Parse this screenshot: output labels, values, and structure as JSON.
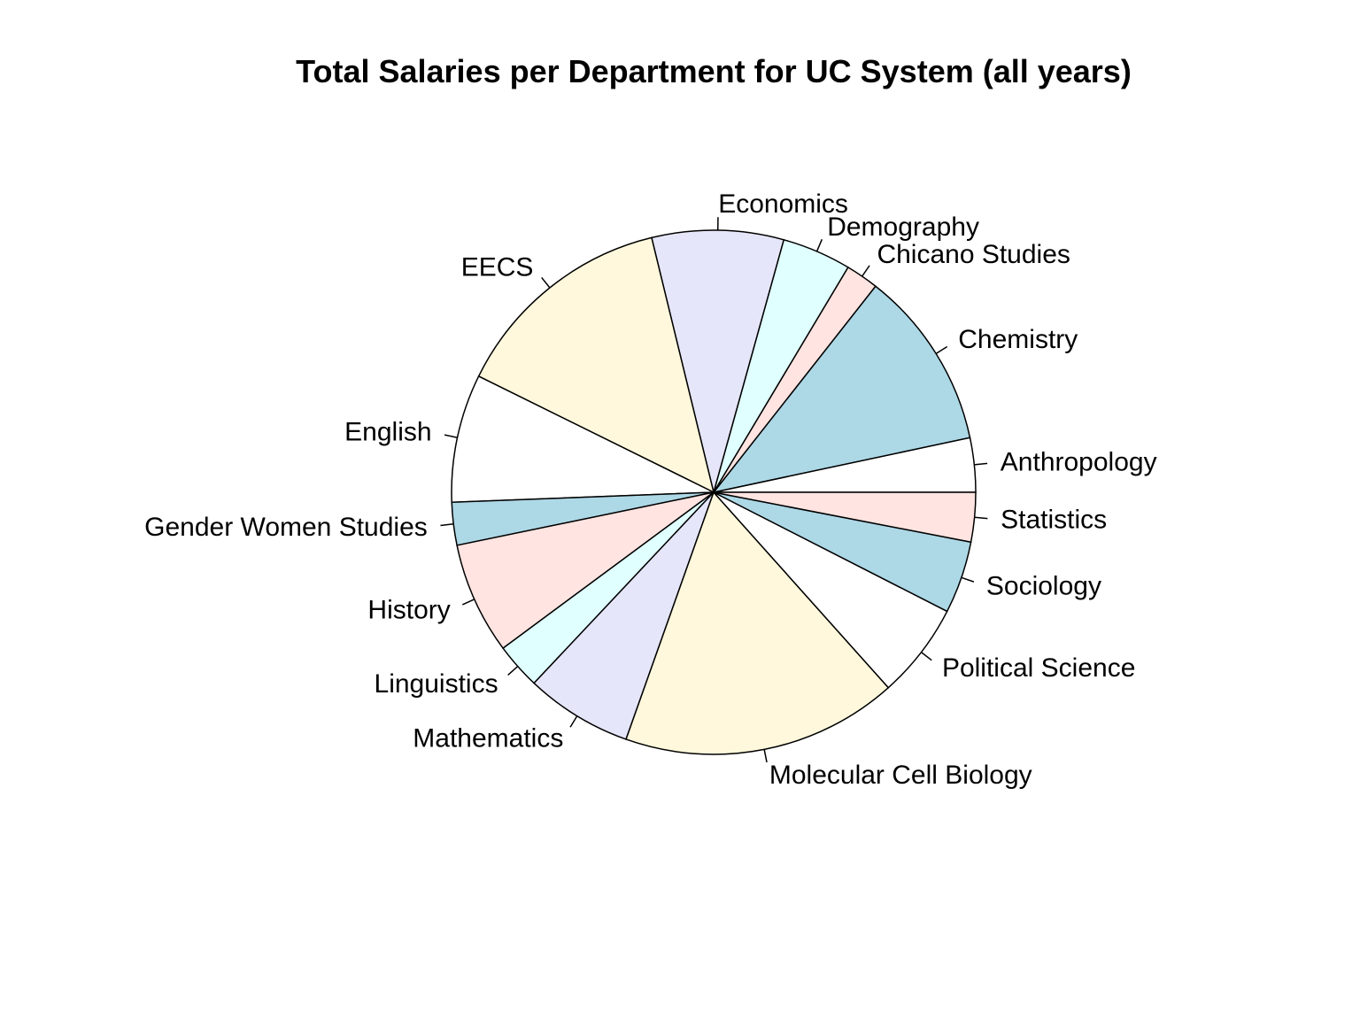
{
  "chart_data": {
    "type": "pie",
    "title": "Total Salaries per Department for UC System (all years)",
    "slices": [
      {
        "label": "Anthropology",
        "value": 3.3,
        "color": "#ffffff"
      },
      {
        "label": "Chemistry",
        "value": 10.9,
        "color": "#add8e6"
      },
      {
        "label": "Chicano Studies",
        "value": 2.0,
        "color": "#ffe4e1"
      },
      {
        "label": "Demography",
        "value": 4.2,
        "color": "#e0ffff"
      },
      {
        "label": "Economics",
        "value": 8.0,
        "color": "#e6e6fa"
      },
      {
        "label": "EECS",
        "value": 13.7,
        "color": "#fff8dc"
      },
      {
        "label": "English",
        "value": 7.8,
        "color": "#ffffff"
      },
      {
        "label": "Gender Women Studies",
        "value": 2.6,
        "color": "#add8e6"
      },
      {
        "label": "History",
        "value": 6.8,
        "color": "#ffe4e1"
      },
      {
        "label": "Linguistics",
        "value": 2.8,
        "color": "#e0ffff"
      },
      {
        "label": "Mathematics",
        "value": 6.5,
        "color": "#e6e6fa"
      },
      {
        "label": "Molecular Cell Biology",
        "value": 16.8,
        "color": "#fff8dc"
      },
      {
        "label": "Political Science",
        "value": 5.8,
        "color": "#ffffff"
      },
      {
        "label": "Sociology",
        "value": 4.4,
        "color": "#add8e6"
      },
      {
        "label": "Statistics",
        "value": 3.0,
        "color": "#ffe4e1"
      }
    ],
    "direction": "counterclockwise",
    "start_angle_deg": 0
  }
}
